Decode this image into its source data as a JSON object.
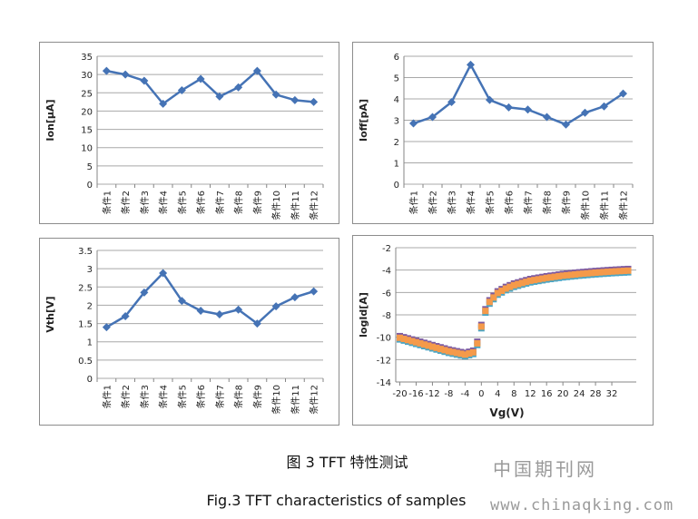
{
  "figure": {
    "caption_cn": "图 3 TFT 特性测试",
    "caption_en": "Fig.3 TFT characteristics of samples",
    "watermark_cn": "中国期刊网",
    "watermark_url": "www.chinaqking.com"
  },
  "colors": {
    "series": "#4573b5",
    "grid": "#a8a8a8",
    "axis": "#868686",
    "text": "#222222"
  },
  "chart_data": [
    {
      "type": "line",
      "id": "ion",
      "ylabel": "Ion[μA]",
      "categories": [
        "条件1",
        "条件2",
        "条件3",
        "条件4",
        "条件5",
        "条件6",
        "条件7",
        "条件8",
        "条件9",
        "条件10",
        "条件11",
        "条件12"
      ],
      "values": [
        31,
        30,
        28.3,
        22,
        25.7,
        28.8,
        24,
        26.5,
        31,
        24.5,
        23,
        22.5
      ],
      "ylim": [
        0,
        35
      ],
      "yticks": [
        0,
        5,
        10,
        15,
        20,
        25,
        30,
        35
      ],
      "grid": true,
      "marker": "diamond"
    },
    {
      "type": "line",
      "id": "ioff",
      "ylabel": "Ioff[pA]",
      "categories": [
        "条件1",
        "条件2",
        "条件3",
        "条件4",
        "条件5",
        "条件6",
        "条件7",
        "条件8",
        "条件9",
        "条件10",
        "条件11",
        "条件12"
      ],
      "values": [
        2.85,
        3.15,
        3.85,
        5.6,
        3.95,
        3.6,
        3.5,
        3.15,
        2.8,
        3.35,
        3.65,
        4.25
      ],
      "ylim": [
        0,
        6
      ],
      "yticks": [
        0,
        1,
        2,
        3,
        4,
        5,
        6
      ],
      "grid": true,
      "marker": "diamond"
    },
    {
      "type": "line",
      "id": "vth",
      "ylabel": "Vth[V]",
      "categories": [
        "条件1",
        "条件2",
        "条件3",
        "条件4",
        "条件5",
        "条件6",
        "条件7",
        "条件8",
        "条件9",
        "条件10",
        "条件11",
        "条件12"
      ],
      "values": [
        1.4,
        1.7,
        2.35,
        2.88,
        2.12,
        1.85,
        1.75,
        1.88,
        1.5,
        1.97,
        2.22,
        2.38
      ],
      "ylim": [
        0,
        3.5
      ],
      "yticks": [
        0,
        0.5,
        1,
        1.5,
        2,
        2.5,
        3,
        3.5
      ],
      "grid": true,
      "marker": "diamond"
    },
    {
      "type": "scatter",
      "id": "transfer",
      "xlabel": "Vg(V)",
      "ylabel": "logId[A]",
      "xlim": [
        -21,
        38
      ],
      "ylim": [
        -14,
        -2
      ],
      "xticks": [
        -20,
        -16,
        -12,
        -8,
        -4,
        0,
        4,
        8,
        12,
        16,
        20,
        24,
        28,
        32
      ],
      "yticks": [
        -14,
        -12,
        -10,
        -8,
        -6,
        -4,
        -2
      ],
      "grid": true,
      "curve_knots": {
        "vg": [
          -20,
          -16,
          -12,
          -8,
          -4,
          -2,
          -1,
          0,
          1,
          2,
          4,
          6,
          8,
          12,
          16,
          20,
          24,
          28,
          32,
          36
        ],
        "log_id": [
          -10.1,
          -10.5,
          -10.9,
          -11.3,
          -11.6,
          -11.4,
          -10.6,
          -9.1,
          -7.7,
          -6.9,
          -6.1,
          -5.7,
          -5.4,
          -5.0,
          -4.75,
          -4.55,
          -4.4,
          -4.28,
          -4.18,
          -4.1
        ]
      },
      "step": 1,
      "series": [
        {
          "color": "#7d5aa0",
          "offset": 0.2
        },
        {
          "color": "#4aa5c4",
          "offset": -0.1
        },
        {
          "color": "#f59a4a",
          "offset": 0.05
        }
      ]
    }
  ]
}
